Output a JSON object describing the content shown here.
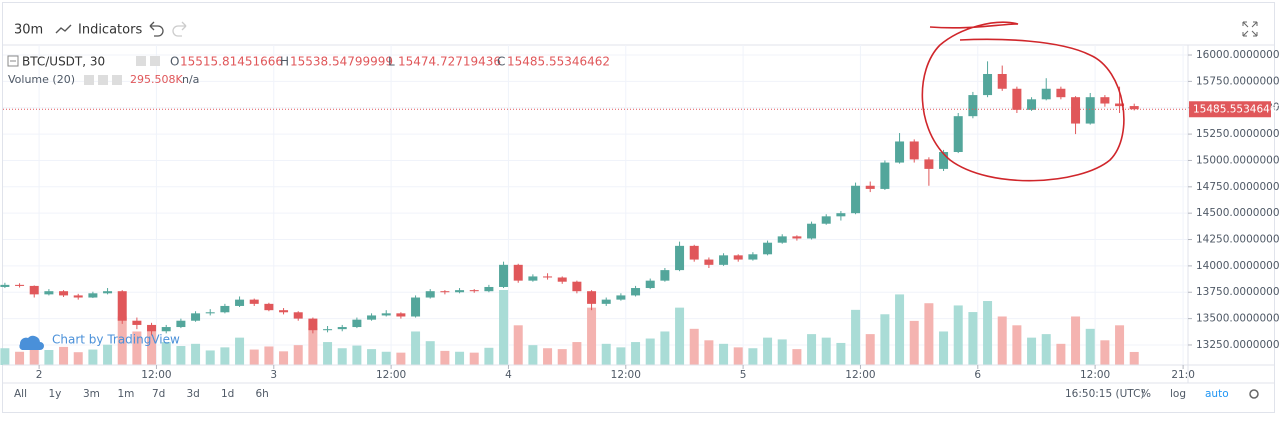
{
  "toolbar": {
    "interval": "30m",
    "indicators": "Indicators"
  },
  "legend": {
    "symbol": "BTC/USDT, 30",
    "o": "O",
    "h": "H",
    "l": "L",
    "c": "C",
    "volume_name": "Volume (20)",
    "volume_value": "295.508K",
    "volume_extra": "n/a"
  },
  "watermark": "Chart by TradingView",
  "bottom_bar": {
    "ranges": [
      "All",
      "1y",
      "3m",
      "1m",
      "7d",
      "3d",
      "1d",
      "6h"
    ],
    "time": "16:50:15 (UTC)",
    "percent": "%",
    "log": "log",
    "auto": "auto"
  },
  "chart_data": {
    "type": "candlestick",
    "up_color": "#53a69b",
    "down_color": "#e0575a",
    "volume_up_color": "#a9dcd6",
    "volume_down_color": "#f4b3b0",
    "grid": true,
    "xlim": [
      -4,
      117.5
    ],
    "ylim": [
      13060,
      16095
    ],
    "xticks": [
      {
        "value": 0,
        "label": "2"
      },
      {
        "value": 12,
        "label": "12:00"
      },
      {
        "value": 24,
        "label": "3"
      },
      {
        "value": 36,
        "label": "12:00"
      },
      {
        "value": 48,
        "label": "4"
      },
      {
        "value": 60,
        "label": "12:00"
      },
      {
        "value": 72,
        "label": "5"
      },
      {
        "value": 84,
        "label": "12:00"
      },
      {
        "value": 96,
        "label": "6"
      },
      {
        "value": 108,
        "label": "12:00"
      },
      {
        "value": 117,
        "label": "21:0"
      }
    ],
    "yticks": [
      {
        "value": 13250,
        "label": "13250.00000000"
      },
      {
        "value": 13500,
        "label": "13500.00000000"
      },
      {
        "value": 13750,
        "label": "13750.00000000"
      },
      {
        "value": 14000,
        "label": "14000.00000000"
      },
      {
        "value": 14250,
        "label": "14250.00000000"
      },
      {
        "value": 14500,
        "label": "14500.00000000"
      },
      {
        "value": 14750,
        "label": "14750.00000000"
      },
      {
        "value": 15000,
        "label": "15000.00000000"
      },
      {
        "value": 15250,
        "label": "15250.00000000"
      },
      {
        "value": 15500,
        "label": "15500.00000000"
      },
      {
        "value": 15750,
        "label": "15750.00000000"
      },
      {
        "value": 16000,
        "label": "16000.00000000"
      }
    ],
    "x": [
      -3.5,
      -2,
      -0.5,
      1,
      2.5,
      4,
      5.5,
      7,
      8.5,
      10,
      11.5,
      13,
      14.5,
      16,
      17.5,
      19,
      20.5,
      22,
      23.5,
      25,
      26.5,
      28,
      29.5,
      31,
      32.5,
      34,
      35.5,
      37,
      38.5,
      40,
      41.5,
      43,
      44.5,
      46,
      47.5,
      49,
      50.5,
      52,
      53.5,
      55,
      56.5,
      58,
      59.5,
      61,
      62.5,
      64,
      65.5,
      67,
      68.5,
      70,
      71.5,
      73,
      74.5,
      76,
      77.5,
      79,
      80.5,
      82,
      83.5,
      85,
      86.5,
      88,
      89.5,
      91,
      92.5,
      94,
      95.5,
      97,
      98.5,
      100,
      101.5,
      103,
      104.5,
      106,
      107.5,
      109,
      110.5,
      112
    ],
    "open": [
      13800,
      13820,
      13810,
      13730,
      13760,
      13720,
      13700,
      13740,
      13760,
      13480,
      13440,
      13380,
      13420,
      13480,
      13550,
      13560,
      13620,
      13680,
      13640,
      13580,
      13560,
      13500,
      13390,
      13400,
      13420,
      13490,
      13530,
      13550,
      13520,
      13700,
      13760,
      13750,
      13770,
      13760,
      13800,
      14010,
      13860,
      13900,
      13890,
      13850,
      13760,
      13640,
      13680,
      13720,
      13790,
      13860,
      13960,
      14190,
      14060,
      14010,
      14100,
      14060,
      14110,
      14220,
      14280,
      14260,
      14400,
      14470,
      14500,
      14760,
      14730,
      14980,
      15180,
      15010,
      14920,
      15080,
      15420,
      15620,
      15820,
      15680,
      15480,
      15580,
      15680,
      15600,
      15350,
      15600,
      15540,
      15515.81451666
    ],
    "high": [
      13840,
      13835,
      13815,
      13780,
      13770,
      13735,
      13755,
      13790,
      13770,
      13510,
      13460,
      13440,
      13500,
      13570,
      13590,
      13640,
      13710,
      13690,
      13650,
      13600,
      13570,
      13510,
      13430,
      13440,
      13510,
      13550,
      13580,
      13560,
      13720,
      13780,
      13770,
      13790,
      13780,
      13820,
      14040,
      14020,
      13920,
      13930,
      13900,
      13860,
      13770,
      13700,
      13740,
      13810,
      13880,
      13980,
      14230,
      14200,
      14080,
      14120,
      14110,
      14130,
      14240,
      14300,
      14290,
      14420,
      14490,
      14520,
      14790,
      14800,
      15000,
      15260,
      15200,
      15030,
      15100,
      15450,
      15650,
      15940,
      15900,
      15700,
      15600,
      15780,
      15700,
      15610,
      15640,
      15620,
      15700,
      15538.54799999
    ],
    "low": [
      13790,
      13795,
      13700,
      13720,
      13705,
      13680,
      13695,
      13730,
      13450,
      13400,
      13340,
      13360,
      13410,
      13470,
      13530,
      13550,
      13610,
      13620,
      13570,
      13540,
      13480,
      13360,
      13370,
      13380,
      13410,
      13480,
      13520,
      13500,
      13510,
      13690,
      13730,
      13740,
      13745,
      13750,
      13790,
      13840,
      13850,
      13870,
      13830,
      13740,
      13580,
      13620,
      13670,
      13710,
      13780,
      13850,
      13950,
      14040,
      13980,
      14000,
      14040,
      14050,
      14100,
      14210,
      14240,
      14250,
      14390,
      14430,
      14490,
      14700,
      14720,
      14970,
      14980,
      14760,
      14900,
      15070,
      15400,
      15600,
      15660,
      15450,
      15470,
      15570,
      15580,
      15250,
      15340,
      15510,
      15450,
      15474.72719436
    ],
    "close": [
      13820,
      13810,
      13730,
      13760,
      13720,
      13700,
      13740,
      13760,
      13480,
      13440,
      13380,
      13420,
      13480,
      13550,
      13560,
      13620,
      13680,
      13640,
      13580,
      13560,
      13500,
      13390,
      13400,
      13420,
      13490,
      13530,
      13550,
      13520,
      13700,
      13760,
      13750,
      13770,
      13760,
      13800,
      14010,
      13860,
      13900,
      13890,
      13850,
      13760,
      13640,
      13680,
      13720,
      13790,
      13860,
      13960,
      14190,
      14060,
      14010,
      14100,
      14060,
      14110,
      14220,
      14280,
      14260,
      14400,
      14470,
      14500,
      14760,
      14730,
      14980,
      15180,
      15010,
      14920,
      15080,
      15420,
      15620,
      15820,
      15680,
      15480,
      15580,
      15680,
      15600,
      15350,
      15600,
      15540,
      15515,
      15485.55346462
    ],
    "volume": [
      380,
      300,
      520,
      340,
      410,
      290,
      350,
      460,
      1100,
      760,
      880,
      520,
      430,
      480,
      330,
      400,
      620,
      350,
      420,
      310,
      450,
      840,
      520,
      380,
      440,
      360,
      300,
      280,
      760,
      540,
      320,
      300,
      280,
      390,
      1700,
      900,
      450,
      380,
      360,
      520,
      1300,
      480,
      400,
      520,
      600,
      760,
      1300,
      820,
      560,
      480,
      400,
      380,
      620,
      580,
      360,
      700,
      620,
      500,
      1250,
      700,
      1150,
      1600,
      1000,
      1400,
      760,
      1350,
      1200,
      1450,
      1100,
      900,
      620,
      700,
      480,
      1100,
      820,
      560,
      900,
      295.508
    ]
  }
}
